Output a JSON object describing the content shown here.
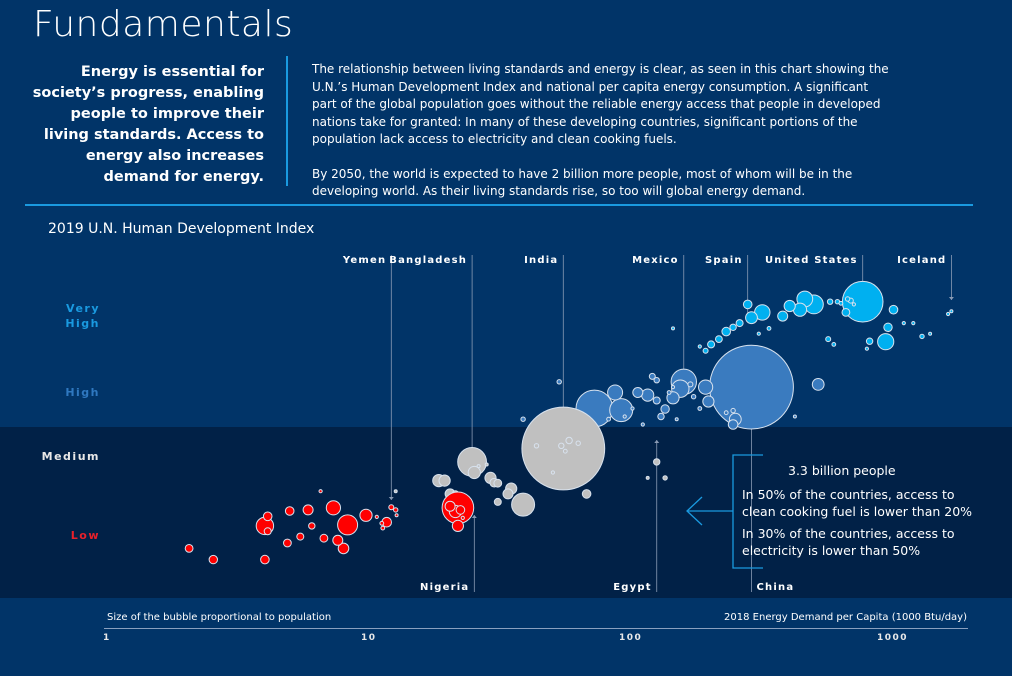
{
  "header": {
    "title": "Fundamentals",
    "lead": "Energy is essential for society’s progress, enabling people to improve their living standards. Access to energy also increases demand for energy.",
    "paragraphs": [
      "The relationship between living standards and energy is clear, as seen in this chart showing the U.N.’s Human Development Index and national per capita energy consumption. A significant part of the global population goes without the reliable energy access that people in developed nations take for granted: In many of these developing countries, significant portions of the population lack access to electricity and clean cooking fuels.",
      "By 2050, the world is expected to have 2 billion more people, most of whom will be in the developing world. As their living standards rise, so too will global energy demand."
    ]
  },
  "annotation": {
    "headline": "3.3 billion people",
    "lines": [
      "In 50% of the countries, access to clean cooking fuel is lower than 20%",
      "In 30% of the countries, access to electricity is lower than 50%"
    ]
  },
  "colors": {
    "background": "#013468",
    "low_band": "#012147",
    "very_high": "#00b0f0",
    "high": "#3a7bbf",
    "medium": "#c0c0c0",
    "low": "#ff0000",
    "accent_rule": "#1a9ae0"
  },
  "chart_data": {
    "type": "scatter",
    "title": "2019 U.N. Human Development Index",
    "xlabel": "2018 Energy Demand per Capita (1000 Btu/day)",
    "size_note": "Size of the bubble proportional to population",
    "xscale": "log",
    "xlim": [
      1,
      2000
    ],
    "x_ticks": [
      "1",
      "10",
      "100",
      "1000"
    ],
    "ylim": [
      0.38,
      0.97
    ],
    "y_categories": [
      {
        "label": "Very\nHigh",
        "key": "very_high",
        "hdi": 0.87
      },
      {
        "label": "High",
        "key": "high",
        "hdi": 0.74
      },
      {
        "label": "Medium",
        "key": "medium",
        "hdi": 0.62
      },
      {
        "label": "Low",
        "key": "low",
        "hdi": 0.47
      }
    ],
    "country_labels": [
      {
        "name": "Yemen",
        "x": 12.5,
        "pos": "top"
      },
      {
        "name": "Bangladesh",
        "x": 25.5,
        "pos": "top"
      },
      {
        "name": "India",
        "x": 57,
        "pos": "top"
      },
      {
        "name": "Mexico",
        "x": 165,
        "pos": "top"
      },
      {
        "name": "Spain",
        "x": 290,
        "pos": "top"
      },
      {
        "name": "United States",
        "x": 800,
        "pos": "top"
      },
      {
        "name": "Iceland",
        "x": 1750,
        "pos": "top"
      },
      {
        "name": "Nigeria",
        "x": 26,
        "pos": "bottom"
      },
      {
        "name": "Egypt",
        "x": 130,
        "pos": "bottom"
      },
      {
        "name": "China",
        "x": 300,
        "pos": "bottom"
      }
    ],
    "series": [
      {
        "name": "Very High",
        "key": "very_high",
        "points": [
          [
            800,
            0.92,
            330
          ],
          [
            520,
            0.915,
            70
          ],
          [
            480,
            0.925,
            50
          ],
          [
            460,
            0.905,
            35
          ],
          [
            420,
            0.912,
            25
          ],
          [
            395,
            0.893,
            20
          ],
          [
            330,
            0.9,
            47
          ],
          [
            300,
            0.89,
            28
          ],
          [
            290,
            0.915,
            15
          ],
          [
            270,
            0.88,
            10
          ],
          [
            255,
            0.872,
            8
          ],
          [
            240,
            0.864,
            15
          ],
          [
            225,
            0.85,
            9
          ],
          [
            210,
            0.84,
            10
          ],
          [
            200,
            0.828,
            5
          ],
          [
            190,
            0.836,
            2
          ],
          [
            600,
            0.92,
            6
          ],
          [
            640,
            0.92,
            4
          ],
          [
            660,
            0.917,
            3
          ],
          [
            700,
            0.925,
            4
          ],
          [
            720,
            0.922,
            5
          ],
          [
            690,
            0.9,
            12
          ],
          [
            740,
            0.915,
            2
          ],
          [
            1050,
            0.905,
            15
          ],
          [
            980,
            0.845,
            52
          ],
          [
            1000,
            0.872,
            14
          ],
          [
            850,
            0.846,
            8
          ],
          [
            830,
            0.832,
            2
          ],
          [
            1350,
            0.855,
            4
          ],
          [
            1700,
            0.897,
            2
          ],
          [
            1750,
            0.902,
            1
          ],
          [
            1250,
            0.88,
            2
          ],
          [
            1450,
            0.86,
            1
          ],
          [
            1150,
            0.88,
            2
          ],
          [
            590,
            0.85,
            5
          ],
          [
            620,
            0.84,
            3
          ],
          [
            350,
            0.87,
            3
          ],
          [
            320,
            0.86,
            2
          ],
          [
            150,
            0.87,
            1
          ]
        ]
      },
      {
        "name": "High",
        "key": "high",
        "points": [
          [
            300,
            0.76,
            1400
          ],
          [
            165,
            0.77,
            128
          ],
          [
            160,
            0.757,
            60
          ],
          [
            150,
            0.74,
            30
          ],
          [
            540,
            0.765,
            28
          ],
          [
            200,
            0.76,
            40
          ],
          [
            205,
            0.733,
            25
          ],
          [
            75,
            0.72,
            270
          ],
          [
            95,
            0.717,
            105
          ],
          [
            55,
            0.77,
            4
          ],
          [
            90,
            0.75,
            45
          ],
          [
            110,
            0.75,
            20
          ],
          [
            120,
            0.745,
            30
          ],
          [
            130,
            0.735,
            10
          ],
          [
            135,
            0.705,
            8
          ],
          [
            140,
            0.719,
            14
          ],
          [
            125,
            0.78,
            7
          ],
          [
            130,
            0.773,
            6
          ],
          [
            260,
            0.7,
            28
          ],
          [
            255,
            0.69,
            18
          ],
          [
            175,
            0.765,
            5
          ],
          [
            180,
            0.742,
            4
          ],
          [
            190,
            0.72,
            3
          ],
          [
            145,
            0.75,
            3
          ],
          [
            150,
            0.76,
            2
          ],
          [
            40,
            0.7,
            4
          ],
          [
            85,
            0.7,
            3
          ],
          [
            98,
            0.705,
            2
          ],
          [
            105,
            0.72,
            2
          ],
          [
            115,
            0.69,
            2
          ],
          [
            240,
            0.712,
            3
          ],
          [
            255,
            0.716,
            4
          ],
          [
            440,
            0.705,
            1
          ],
          [
            155,
            0.7,
            1
          ]
        ]
      },
      {
        "name": "Medium",
        "key": "medium",
        "points": [
          [
            57,
            0.645,
            1366
          ],
          [
            25.5,
            0.62,
            165
          ],
          [
            26,
            0.6,
            30
          ],
          [
            19,
            0.585,
            30
          ],
          [
            20,
            0.585,
            25
          ],
          [
            21,
            0.56,
            20
          ],
          [
            22,
            0.56,
            8
          ],
          [
            30,
            0.59,
            25
          ],
          [
            31,
            0.581,
            15
          ],
          [
            32,
            0.58,
            12
          ],
          [
            36,
            0.57,
            25
          ],
          [
            40,
            0.54,
            105
          ],
          [
            35,
            0.56,
            20
          ],
          [
            32,
            0.545,
            10
          ],
          [
            45,
            0.65,
            4
          ],
          [
            56,
            0.65,
            6
          ],
          [
            60,
            0.66,
            8
          ],
          [
            58,
            0.64,
            3
          ],
          [
            65,
            0.655,
            4
          ],
          [
            52,
            0.6,
            2
          ],
          [
            70,
            0.56,
            15
          ],
          [
            130,
            0.62,
            8
          ],
          [
            140,
            0.59,
            4
          ],
          [
            120,
            0.59,
            1
          ],
          [
            13,
            0.565,
            1
          ],
          [
            29,
            0.615,
            1
          ],
          [
            27,
            0.612,
            1
          ]
        ]
      },
      {
        "name": "Low",
        "key": "low",
        "points": [
          [
            22.5,
            0.534,
            200
          ],
          [
            22,
            0.527,
            30
          ],
          [
            21,
            0.537,
            20
          ],
          [
            23,
            0.53,
            15
          ],
          [
            22.5,
            0.5,
            25
          ],
          [
            12,
            0.507,
            18
          ],
          [
            12.5,
            0.535,
            5
          ],
          [
            13,
            0.53,
            4
          ],
          [
            10,
            0.52,
            30
          ],
          [
            11,
            0.517,
            2
          ],
          [
            11.5,
            0.505,
            3
          ],
          [
            11.6,
            0.496,
            3
          ],
          [
            8.5,
            0.502,
            80
          ],
          [
            7.5,
            0.534,
            40
          ],
          [
            6,
            0.53,
            20
          ],
          [
            5.1,
            0.528,
            15
          ],
          [
            4.2,
            0.518,
            15
          ],
          [
            4.1,
            0.5,
            60
          ],
          [
            4.2,
            0.49,
            10
          ],
          [
            5.0,
            0.468,
            12
          ],
          [
            4.1,
            0.437,
            15
          ],
          [
            6.9,
            0.477,
            12
          ],
          [
            7.8,
            0.473,
            20
          ],
          [
            8.2,
            0.458,
            22
          ],
          [
            6.2,
            0.5,
            8
          ],
          [
            5.6,
            0.48,
            10
          ],
          [
            2.1,
            0.458,
            12
          ],
          [
            2.6,
            0.437,
            14
          ],
          [
            6.7,
            0.565,
            2
          ],
          [
            13.1,
            0.52,
            1
          ],
          [
            23.5,
            0.515,
            2
          ]
        ]
      }
    ]
  }
}
